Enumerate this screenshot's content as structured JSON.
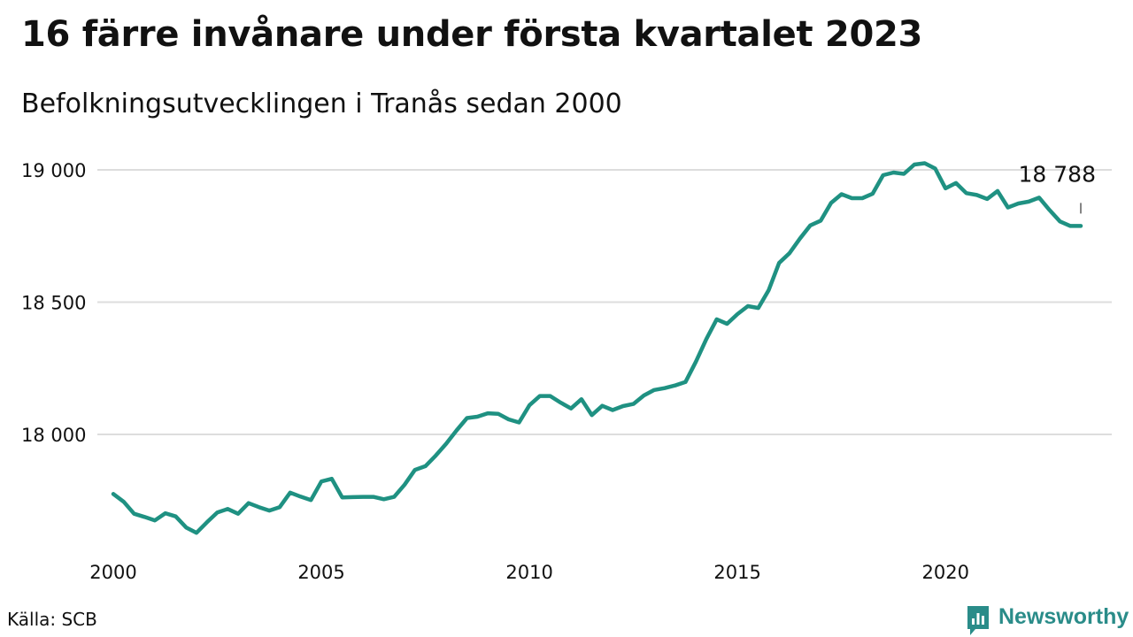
{
  "title": "16 färre invånare under första kvartalet 2023",
  "subtitle": "Befolkningsutvecklingen i Tranås sedan 2000",
  "source": "Källa: SCB",
  "brand": {
    "name": "Newsworthy",
    "icon": "newsworthy-logo-icon",
    "color": "#2a8c89"
  },
  "chart_data": {
    "type": "line",
    "title": "16 färre invånare under första kvartalet 2023",
    "subtitle": "Befolkningsutvecklingen i Tranås sedan 2000",
    "xlabel": "",
    "ylabel": "",
    "xlim": [
      2000,
      2023.25
    ],
    "ylim": [
      17600,
      19100
    ],
    "x_ticks": [
      2000,
      2005,
      2010,
      2015,
      2020
    ],
    "x_tick_labels": [
      "2000",
      "2005",
      "2010",
      "2015",
      "2020"
    ],
    "y_ticks": [
      18000,
      18500,
      19000
    ],
    "y_tick_labels": [
      "18 000",
      "18 500",
      "19 000"
    ],
    "grid": true,
    "line_color": "#1f9182",
    "end_label": "18 788",
    "series": [
      {
        "x": [
          2000.0,
          2000.25,
          2000.5,
          2000.75,
          2001.0,
          2001.25,
          2001.5,
          2001.75,
          2002.0,
          2002.25,
          2002.5,
          2002.75,
          2003.0,
          2003.25,
          2003.5,
          2003.75,
          2004.0,
          2004.25,
          2004.5,
          2004.75,
          2005.0,
          2005.25,
          2005.5,
          2005.75,
          2006.0,
          2006.25,
          2006.5,
          2006.75,
          2007.0,
          2007.25,
          2007.5,
          2007.75,
          2008.0,
          2008.25,
          2008.5,
          2008.75,
          2009.0,
          2009.25,
          2009.5,
          2009.75,
          2010.0,
          2010.25,
          2010.5,
          2010.75,
          2011.0,
          2011.25,
          2011.5,
          2011.75,
          2012.0,
          2012.25,
          2012.5,
          2012.75,
          2013.0,
          2013.25,
          2013.5,
          2013.75,
          2014.0,
          2014.25,
          2014.5,
          2014.75,
          2015.0,
          2015.25,
          2015.5,
          2015.75,
          2016.0,
          2016.25,
          2016.5,
          2016.75,
          2017.0,
          2017.25,
          2017.5,
          2017.75,
          2018.0,
          2018.25,
          2018.5,
          2018.75,
          2019.0,
          2019.25,
          2019.5,
          2019.75,
          2020.0,
          2020.25,
          2020.5,
          2020.75,
          2021.0,
          2021.25,
          2021.5,
          2021.75,
          2022.0,
          2022.25,
          2022.5,
          2022.75,
          2023.0,
          2023.25
        ],
        "values": [
          17775,
          17745,
          17700,
          17688,
          17675,
          17702,
          17690,
          17648,
          17628,
          17668,
          17705,
          17718,
          17700,
          17740,
          17725,
          17712,
          17725,
          17780,
          17765,
          17752,
          17822,
          17832,
          17762,
          17763,
          17764,
          17764,
          17755,
          17764,
          17810,
          17866,
          17880,
          17920,
          17965,
          18015,
          18062,
          18067,
          18080,
          18078,
          18057,
          18045,
          18110,
          18145,
          18145,
          18120,
          18098,
          18133,
          18073,
          18108,
          18092,
          18107,
          18115,
          18147,
          18168,
          18175,
          18185,
          18198,
          18275,
          18360,
          18435,
          18418,
          18455,
          18485,
          18478,
          18545,
          18648,
          18685,
          18740,
          18790,
          18808,
          18875,
          18908,
          18893,
          18893,
          18910,
          18980,
          18990,
          18985,
          19020,
          19025,
          19005,
          18930,
          18950,
          18912,
          18905,
          18890,
          18920,
          18858,
          18873,
          18880,
          18895,
          18848,
          18805,
          18788,
          18788
        ]
      }
    ]
  }
}
